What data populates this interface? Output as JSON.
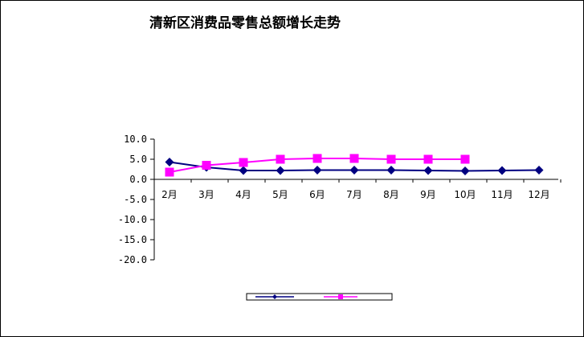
{
  "chart_data": {
    "type": "line",
    "title": "清新区消费品零售总额增长走势",
    "categories": [
      "2月",
      "3月",
      "4月",
      "5月",
      "6月",
      "7月",
      "8月",
      "9月",
      "10月",
      "11月",
      "12月"
    ],
    "yticks": [
      "10.0",
      "5.0",
      "0.0",
      "-5.0",
      "-10.0",
      "-15.0",
      "-20.0"
    ],
    "ylim": [
      -20,
      10
    ],
    "grid": false,
    "legend_position": "bottom",
    "series": [
      {
        "values": [
          4.3,
          3.0,
          2.2,
          2.2,
          2.3,
          2.3,
          2.3,
          2.2,
          2.1,
          2.2,
          2.3
        ],
        "color": "#000080",
        "marker": "diamond"
      },
      {
        "values": [
          1.8,
          3.5,
          4.2,
          5.0,
          5.2,
          5.2,
          5.0,
          5.0,
          5.0,
          null,
          null
        ],
        "color": "#ff00ff",
        "marker": "square"
      }
    ]
  }
}
